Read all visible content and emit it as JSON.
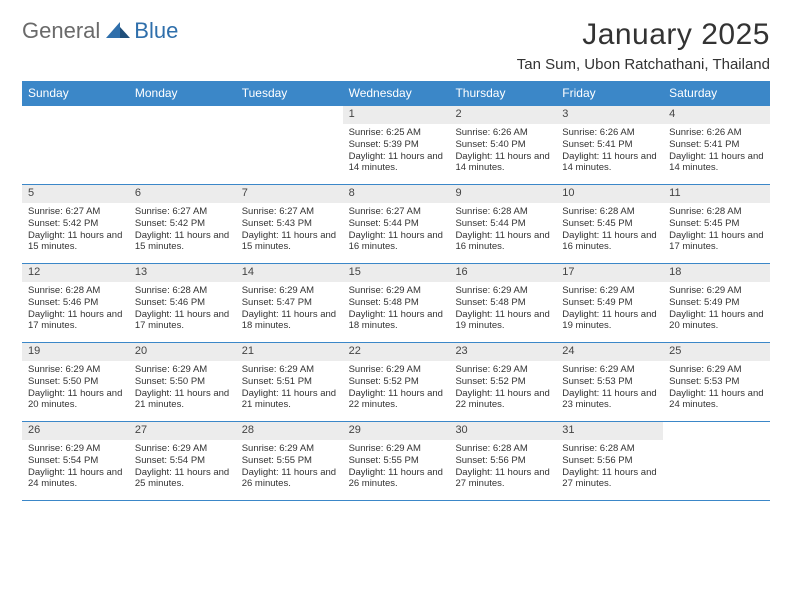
{
  "brand": {
    "part1": "General",
    "part2": "Blue"
  },
  "title": "January 2025",
  "location": "Tan Sum, Ubon Ratchathani, Thailand",
  "colors": {
    "header_bg": "#3b87c8",
    "daynum_bg": "#ececec",
    "rule": "#3b87c8"
  },
  "fonts": {
    "title_size": 30,
    "location_size": 15,
    "hdr_size": 12,
    "body_size": 9.5
  },
  "weekdays": [
    "Sunday",
    "Monday",
    "Tuesday",
    "Wednesday",
    "Thursday",
    "Friday",
    "Saturday"
  ],
  "weeks": [
    [
      null,
      null,
      null,
      {
        "n": "1",
        "sr": "6:25 AM",
        "ss": "5:39 PM",
        "dl": "11 hours and 14 minutes."
      },
      {
        "n": "2",
        "sr": "6:26 AM",
        "ss": "5:40 PM",
        "dl": "11 hours and 14 minutes."
      },
      {
        "n": "3",
        "sr": "6:26 AM",
        "ss": "5:41 PM",
        "dl": "11 hours and 14 minutes."
      },
      {
        "n": "4",
        "sr": "6:26 AM",
        "ss": "5:41 PM",
        "dl": "11 hours and 14 minutes."
      }
    ],
    [
      {
        "n": "5",
        "sr": "6:27 AM",
        "ss": "5:42 PM",
        "dl": "11 hours and 15 minutes."
      },
      {
        "n": "6",
        "sr": "6:27 AM",
        "ss": "5:42 PM",
        "dl": "11 hours and 15 minutes."
      },
      {
        "n": "7",
        "sr": "6:27 AM",
        "ss": "5:43 PM",
        "dl": "11 hours and 15 minutes."
      },
      {
        "n": "8",
        "sr": "6:27 AM",
        "ss": "5:44 PM",
        "dl": "11 hours and 16 minutes."
      },
      {
        "n": "9",
        "sr": "6:28 AM",
        "ss": "5:44 PM",
        "dl": "11 hours and 16 minutes."
      },
      {
        "n": "10",
        "sr": "6:28 AM",
        "ss": "5:45 PM",
        "dl": "11 hours and 16 minutes."
      },
      {
        "n": "11",
        "sr": "6:28 AM",
        "ss": "5:45 PM",
        "dl": "11 hours and 17 minutes."
      }
    ],
    [
      {
        "n": "12",
        "sr": "6:28 AM",
        "ss": "5:46 PM",
        "dl": "11 hours and 17 minutes."
      },
      {
        "n": "13",
        "sr": "6:28 AM",
        "ss": "5:46 PM",
        "dl": "11 hours and 17 minutes."
      },
      {
        "n": "14",
        "sr": "6:29 AM",
        "ss": "5:47 PM",
        "dl": "11 hours and 18 minutes."
      },
      {
        "n": "15",
        "sr": "6:29 AM",
        "ss": "5:48 PM",
        "dl": "11 hours and 18 minutes."
      },
      {
        "n": "16",
        "sr": "6:29 AM",
        "ss": "5:48 PM",
        "dl": "11 hours and 19 minutes."
      },
      {
        "n": "17",
        "sr": "6:29 AM",
        "ss": "5:49 PM",
        "dl": "11 hours and 19 minutes."
      },
      {
        "n": "18",
        "sr": "6:29 AM",
        "ss": "5:49 PM",
        "dl": "11 hours and 20 minutes."
      }
    ],
    [
      {
        "n": "19",
        "sr": "6:29 AM",
        "ss": "5:50 PM",
        "dl": "11 hours and 20 minutes."
      },
      {
        "n": "20",
        "sr": "6:29 AM",
        "ss": "5:50 PM",
        "dl": "11 hours and 21 minutes."
      },
      {
        "n": "21",
        "sr": "6:29 AM",
        "ss": "5:51 PM",
        "dl": "11 hours and 21 minutes."
      },
      {
        "n": "22",
        "sr": "6:29 AM",
        "ss": "5:52 PM",
        "dl": "11 hours and 22 minutes."
      },
      {
        "n": "23",
        "sr": "6:29 AM",
        "ss": "5:52 PM",
        "dl": "11 hours and 22 minutes."
      },
      {
        "n": "24",
        "sr": "6:29 AM",
        "ss": "5:53 PM",
        "dl": "11 hours and 23 minutes."
      },
      {
        "n": "25",
        "sr": "6:29 AM",
        "ss": "5:53 PM",
        "dl": "11 hours and 24 minutes."
      }
    ],
    [
      {
        "n": "26",
        "sr": "6:29 AM",
        "ss": "5:54 PM",
        "dl": "11 hours and 24 minutes."
      },
      {
        "n": "27",
        "sr": "6:29 AM",
        "ss": "5:54 PM",
        "dl": "11 hours and 25 minutes."
      },
      {
        "n": "28",
        "sr": "6:29 AM",
        "ss": "5:55 PM",
        "dl": "11 hours and 26 minutes."
      },
      {
        "n": "29",
        "sr": "6:29 AM",
        "ss": "5:55 PM",
        "dl": "11 hours and 26 minutes."
      },
      {
        "n": "30",
        "sr": "6:28 AM",
        "ss": "5:56 PM",
        "dl": "11 hours and 27 minutes."
      },
      {
        "n": "31",
        "sr": "6:28 AM",
        "ss": "5:56 PM",
        "dl": "11 hours and 27 minutes."
      },
      null
    ]
  ],
  "labels": {
    "sunrise": "Sunrise:",
    "sunset": "Sunset:",
    "daylight": "Daylight:"
  }
}
